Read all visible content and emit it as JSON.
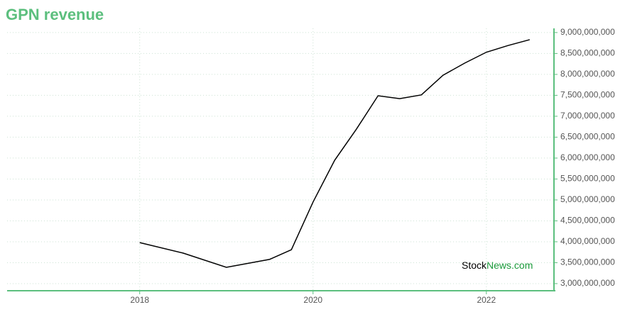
{
  "chart_data": {
    "type": "line",
    "title": "GPN revenue",
    "x": [
      2018,
      2018.5,
      2019,
      2019.5,
      2019.75,
      2020,
      2020.25,
      2020.5,
      2020.75,
      2021,
      2021.25,
      2021.5,
      2021.75,
      2022,
      2022.25,
      2022.5
    ],
    "series": [
      {
        "color": "#000000",
        "values": [
          3980000000,
          3730000000,
          3390000000,
          3580000000,
          3810000000,
          4950000000,
          5950000000,
          6690000000,
          7490000000,
          7420000000,
          7510000000,
          7980000000,
          8270000000,
          8530000000,
          8690000000,
          8830000000
        ]
      }
    ],
    "xlim": [
      2016.47,
      2022.78
    ],
    "xticks": [
      2018,
      2020,
      2022
    ],
    "ylim": [
      2830000000,
      9100000000
    ],
    "yticks": [
      {
        "value": 3000000000,
        "label": "3,000,000,000"
      },
      {
        "value": 3500000000,
        "label": "3,500,000,000"
      },
      {
        "value": 4000000000,
        "label": "4,000,000,000"
      },
      {
        "value": 4500000000,
        "label": "4,500,000,000"
      },
      {
        "value": 5000000000,
        "label": "5,000,000,000"
      },
      {
        "value": 5500000000,
        "label": "5,500,000,000"
      },
      {
        "value": 6000000000,
        "label": "6,000,000,000"
      },
      {
        "value": 6500000000,
        "label": "6,500,000,000"
      },
      {
        "value": 7000000000,
        "label": "7,000,000,000"
      },
      {
        "value": 7500000000,
        "label": "7,500,000,000"
      },
      {
        "value": 8000000000,
        "label": "8,000,000,000"
      },
      {
        "value": 8500000000,
        "label": "8,500,000,000"
      },
      {
        "value": 9000000000,
        "label": "9,000,000,000"
      }
    ],
    "grid": true,
    "axis_color": "#5cbf7e",
    "watermark": [
      "Stock",
      "News.com"
    ]
  }
}
